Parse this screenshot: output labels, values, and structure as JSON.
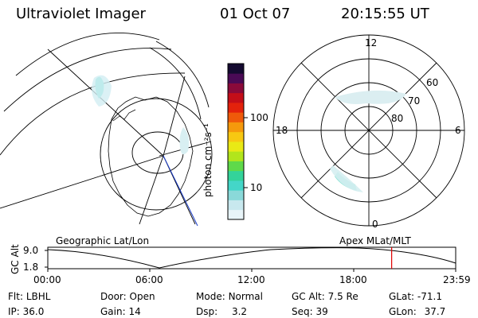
{
  "header": {
    "instrument": "Ultraviolet Imager",
    "date": "01 Oct 07",
    "time": "20:15:55 UT"
  },
  "colorbar": {
    "unit": "photon cm⁻²s⁻¹",
    "ticks": [
      "100",
      "10"
    ],
    "colors": [
      "#e8f4f8",
      "#c8e8ee",
      "#8ad9d9",
      "#44d6c8",
      "#33d39a",
      "#5fd94a",
      "#b2e51c",
      "#e9e915",
      "#f7c812",
      "#f5990c",
      "#ef5a0a",
      "#e3220c",
      "#c40e19",
      "#8a0a3a",
      "#4a0a55",
      "#140a30"
    ]
  },
  "geo_map": {
    "title": "Geographic Lat/Lon"
  },
  "polar_plot": {
    "title": "Apex MLat/MLT",
    "lat_labels": [
      "60",
      "70",
      "80"
    ],
    "mlt_labels": {
      "top": "12",
      "bottom": "0",
      "left": "18",
      "right": "6"
    }
  },
  "altitude_plot": {
    "ylabel": "GC Alt",
    "yticks": [
      "9.0",
      "1.8"
    ],
    "xticks": [
      "00:00",
      "06:00",
      "12:00",
      "18:00",
      "23:59"
    ],
    "current_time_fraction": 0.843,
    "line_color": "#000000",
    "marker_color": "#e00000"
  },
  "status": {
    "filter_label": "Flt:",
    "filter_value": "LBHL",
    "door_label": "Door:",
    "door_value": "Open",
    "mode_label": "Mode:",
    "mode_value": "Normal",
    "gcalt_label": "GC Alt:",
    "gcalt_value": "7.5 Re",
    "glat_label": "GLat:",
    "glat_value": "-71.1",
    "ip_label": "IP:",
    "ip_value": "36.0",
    "gain_label": "Gain:",
    "gain_value": "14",
    "dsp_label": "Dsp:",
    "dsp_value": "3.2",
    "seq_label": "Seq:",
    "seq_value": "39",
    "glon_label": "GLon:",
    "glon_value": "37.7"
  }
}
